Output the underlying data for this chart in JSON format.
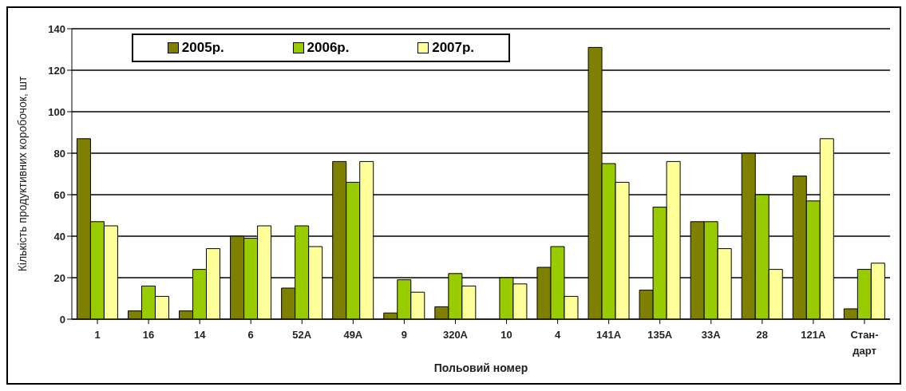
{
  "chart_data": {
    "type": "bar",
    "xlabel": "Польовий номер",
    "ylabel": "Кількість продуктивних коробочок, шт",
    "categories": [
      "1",
      "16",
      "14",
      "6",
      "52А",
      "49А",
      "9",
      "320А",
      "10",
      "4",
      "141А",
      "135А",
      "33А",
      "28",
      "121А",
      "Стан-дарт"
    ],
    "series": [
      {
        "name": "2005р.",
        "color": "#808000",
        "values": [
          87,
          4,
          4,
          40,
          15,
          76,
          3,
          6,
          0,
          25,
          131,
          14,
          47,
          80,
          69,
          5
        ]
      },
      {
        "name": "2006р.",
        "color": "#99cc00",
        "values": [
          47,
          16,
          24,
          39,
          45,
          66,
          19,
          22,
          20,
          35,
          75,
          54,
          47,
          60,
          57,
          24
        ]
      },
      {
        "name": "2007р.",
        "color": "#ffff99",
        "values": [
          45,
          11,
          34,
          45,
          35,
          76,
          13,
          16,
          17,
          11,
          66,
          76,
          34,
          24,
          87,
          27
        ]
      }
    ],
    "ylim": [
      0,
      140
    ],
    "yticks": [
      0,
      20,
      40,
      60,
      80,
      100,
      120,
      140
    ],
    "grid": "y",
    "legend": "top"
  }
}
